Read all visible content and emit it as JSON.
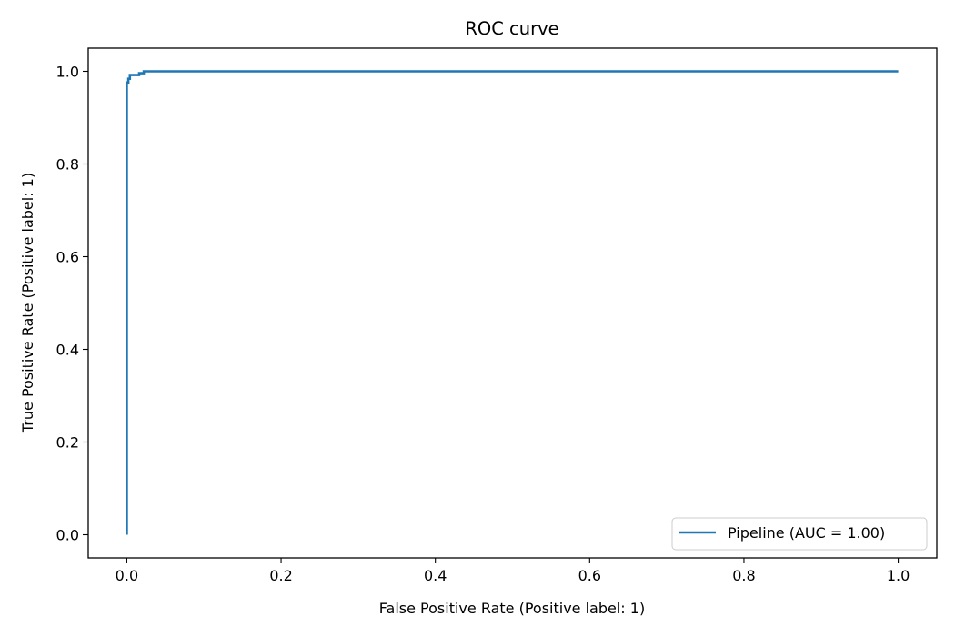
{
  "chart_data": {
    "type": "line",
    "title": "ROC curve",
    "xlabel": "False Positive Rate (Positive label: 1)",
    "ylabel": "True Positive Rate (Positive label: 1)",
    "xlim": [
      -0.05,
      1.05
    ],
    "ylim": [
      -0.05,
      1.05
    ],
    "xticks": [
      0.0,
      0.2,
      0.4,
      0.6,
      0.8,
      1.0
    ],
    "yticks": [
      0.0,
      0.2,
      0.4,
      0.6,
      0.8,
      1.0
    ],
    "xtick_labels": [
      "0.0",
      "0.2",
      "0.4",
      "0.6",
      "0.8",
      "1.0"
    ],
    "ytick_labels": [
      "0.0",
      "0.2",
      "0.4",
      "0.6",
      "0.8",
      "1.0"
    ],
    "grid": false,
    "legend_position": "lower-right",
    "series": [
      {
        "name": "Pipeline (AUC = 1.00)",
        "color": "#1f77b4",
        "x": [
          0.0,
          0.0,
          0.002,
          0.002,
          0.004,
          0.004,
          0.012,
          0.016,
          0.016,
          0.022,
          0.022,
          1.0
        ],
        "y": [
          0.0,
          0.976,
          0.976,
          0.984,
          0.984,
          0.992,
          0.992,
          0.992,
          0.996,
          0.996,
          1.0,
          1.0
        ]
      }
    ]
  }
}
